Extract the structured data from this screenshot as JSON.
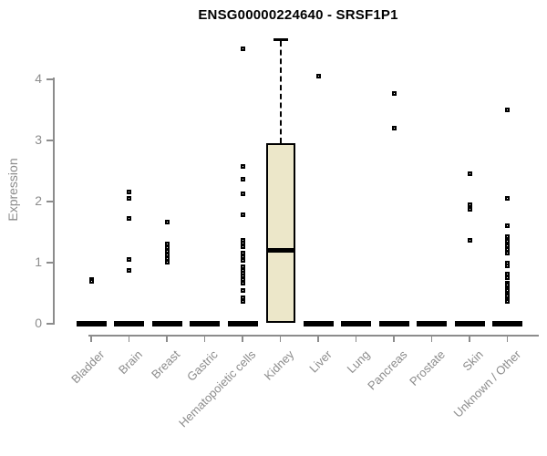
{
  "chart_data": {
    "type": "boxplot",
    "title": "ENSG00000224640 - SRSF1P1",
    "ylabel": "Expression",
    "xlabel": "",
    "ylim": [
      0,
      4.7
    ],
    "yticks": [
      "0",
      "1",
      "2",
      "3",
      "4"
    ],
    "grid": false,
    "legend": null,
    "colors": {
      "box_fill": "#ECE7C9",
      "box_border": "#000000",
      "median": "#000000",
      "outlier": "#000000",
      "axis": "#8C8C8C",
      "title": "#000000"
    },
    "categories": [
      "Bladder",
      "Brain",
      "Breast",
      "Gastric",
      "Hematopoietic cells",
      "Kidney",
      "Liver",
      "Lung",
      "Pancreas",
      "Prostate",
      "Skin",
      "Unknown / Other"
    ],
    "boxes": [
      {
        "category": "Bladder",
        "q1": 0,
        "median": 0,
        "q3": 0,
        "whisker_low": 0,
        "whisker_high": 0,
        "outliers": [
          0.73,
          0.7
        ]
      },
      {
        "category": "Brain",
        "q1": 0,
        "median": 0,
        "q3": 0,
        "whisker_low": 0,
        "whisker_high": 0,
        "outliers": [
          2.15,
          2.05,
          1.73,
          1.05,
          0.88
        ]
      },
      {
        "category": "Breast",
        "q1": 0,
        "median": 0,
        "q3": 0,
        "whisker_low": 0,
        "whisker_high": 0,
        "outliers": [
          1.67,
          1.31,
          1.25,
          1.19,
          1.13,
          1.07,
          1.01
        ]
      },
      {
        "category": "Gastric",
        "q1": 0,
        "median": 0,
        "q3": 0,
        "whisker_low": 0,
        "whisker_high": 0,
        "outliers": []
      },
      {
        "category": "Hematopoietic cells",
        "q1": 0,
        "median": 0,
        "q3": 0,
        "whisker_low": 0,
        "whisker_high": 0,
        "outliers": [
          4.5,
          2.57,
          2.37,
          2.12,
          1.79,
          1.37,
          1.32,
          1.26,
          1.15,
          1.1,
          1.04,
          0.94,
          0.88,
          0.83,
          0.78,
          0.72,
          0.67,
          0.55,
          0.43,
          0.37
        ]
      },
      {
        "category": "Kidney",
        "q1": 0.02,
        "median": 1.2,
        "q3": 2.95,
        "whisker_low": 0.02,
        "whisker_high": 4.65,
        "outliers": []
      },
      {
        "category": "Liver",
        "q1": 0,
        "median": 0,
        "q3": 0,
        "whisker_low": 0,
        "whisker_high": 0,
        "outliers": [
          4.05
        ]
      },
      {
        "category": "Lung",
        "q1": 0,
        "median": 0,
        "q3": 0,
        "whisker_low": 0,
        "whisker_high": 0,
        "outliers": []
      },
      {
        "category": "Pancreas",
        "q1": 0,
        "median": 0,
        "q3": 0,
        "whisker_low": 0,
        "whisker_high": 0,
        "outliers": [
          3.77,
          3.2
        ]
      },
      {
        "category": "Prostate",
        "q1": 0,
        "median": 0,
        "q3": 0,
        "whisker_low": 0,
        "whisker_high": 0,
        "outliers": []
      },
      {
        "category": "Skin",
        "q1": 0,
        "median": 0,
        "q3": 0,
        "whisker_low": 0,
        "whisker_high": 0,
        "outliers": [
          2.45,
          1.95,
          1.87,
          1.37
        ]
      },
      {
        "category": "Unknown / Other",
        "q1": 0,
        "median": 0,
        "q3": 0,
        "whisker_low": 0,
        "whisker_high": 0,
        "outliers": [
          3.5,
          2.05,
          1.6,
          1.42,
          1.35,
          1.28,
          1.22,
          1.16,
          1.0,
          0.95,
          0.82,
          0.76,
          0.67,
          0.63,
          0.58,
          0.54,
          0.49,
          0.45,
          0.4,
          0.36
        ]
      }
    ]
  }
}
